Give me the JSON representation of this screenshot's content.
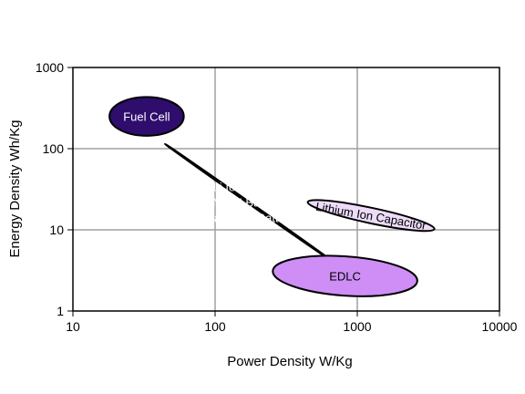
{
  "chart_data": {
    "type": "scatter",
    "xlabel": "Power Density W/Kg",
    "ylabel": "Energy Density Wh/Kg",
    "xscale": "log",
    "yscale": "log",
    "xlim": [
      10,
      10000
    ],
    "ylim": [
      1,
      1000
    ],
    "grid": true,
    "x_ticks": [
      "10",
      "100",
      "1000",
      "10000"
    ],
    "y_ticks": [
      "1",
      "10",
      "100",
      "1000"
    ],
    "regions": [
      {
        "name": "fuel-cell",
        "labels": [
          "Fuel Cell"
        ],
        "center": [
          33,
          250
        ],
        "x_range": [
          18,
          60
        ],
        "y_range": [
          140,
          420
        ],
        "tilt_deg": 0,
        "fill": "#2f0d6d",
        "text_color": "#ffffff",
        "text_rotate_deg": 0
      },
      {
        "name": "battery",
        "labels": [
          "Li Ion Battery",
          "NiMH Battery",
          "Lead-Acid Battery"
        ],
        "center": [
          170,
          22
        ],
        "x_range": [
          65,
          900
        ],
        "y_range": [
          6,
          120
        ],
        "tilt_deg": 35,
        "fill": "#7d3bbd",
        "text_color": "#ffffff",
        "text_rotate_deg": 0
      },
      {
        "name": "lithium-ion-capacitor",
        "labels": [
          "Lithium Ion Capacitor"
        ],
        "center": [
          1250,
          15
        ],
        "x_range": [
          450,
          3500
        ],
        "y_range": [
          10,
          24
        ],
        "tilt_deg": 12,
        "fill": "#ecdcf9",
        "text_color": "#000000",
        "text_rotate_deg": 10
      },
      {
        "name": "edlc",
        "labels": [
          "EDLC"
        ],
        "center": [
          820,
          2.7
        ],
        "x_range": [
          260,
          2700
        ],
        "y_range": [
          1.65,
          5.2
        ],
        "tilt_deg": 4,
        "fill": "#cf8ef5",
        "text_color": "#000000",
        "text_rotate_deg": 0
      }
    ]
  }
}
